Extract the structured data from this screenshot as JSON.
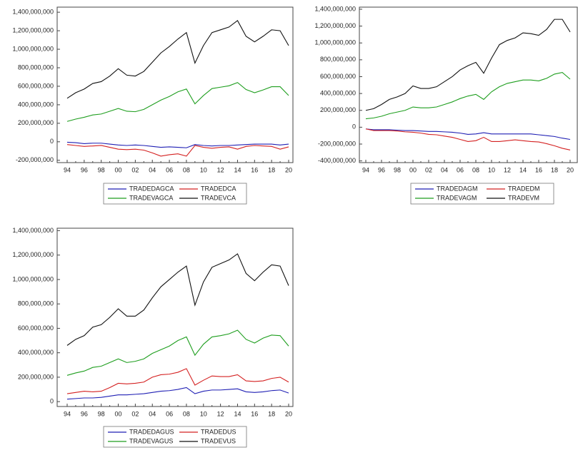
{
  "chart_data": [
    {
      "type": "line",
      "categories": [
        "94",
        null,
        "96",
        null,
        "98",
        null,
        "00",
        null,
        "02",
        null,
        "04",
        null,
        "06",
        null,
        "08",
        null,
        "10",
        null,
        "12",
        null,
        "14",
        null,
        "16",
        null,
        "18",
        null,
        "20"
      ],
      "ylim": [
        -225000000,
        1455000000
      ],
      "yticks": [
        {
          "value": -200000000,
          "label": "-200,000,000"
        },
        0,
        {
          "value": 200000000,
          "label": "200,000,000"
        },
        {
          "value": 400000000,
          "label": "400,000,000"
        },
        {
          "value": 600000000,
          "label": "600,000,000"
        },
        {
          "value": 800000000,
          "label": "800,000,000"
        },
        {
          "value": 1000000000,
          "label": "1,000,000,000"
        },
        {
          "value": 1200000000,
          "label": "1,200,000,000"
        },
        {
          "value": 1400000000,
          "label": "1,400,000,000"
        }
      ],
      "series": [
        {
          "name": "TRADEDAGCA",
          "color": "#1f1fb4",
          "values": [
            -5000000,
            -10000000,
            -20000000,
            -15000000,
            -15000000,
            -25000000,
            -35000000,
            -40000000,
            -35000000,
            -40000000,
            -50000000,
            -60000000,
            -55000000,
            -60000000,
            -65000000,
            -30000000,
            -40000000,
            -45000000,
            -40000000,
            -40000000,
            -35000000,
            -30000000,
            -25000000,
            -25000000,
            -25000000,
            -35000000,
            -25000000
          ]
        },
        {
          "name": "TRADEDCA",
          "color": "#d42020",
          "values": [
            -30000000,
            -40000000,
            -50000000,
            -45000000,
            -40000000,
            -60000000,
            -80000000,
            -85000000,
            -80000000,
            -90000000,
            -120000000,
            -155000000,
            -140000000,
            -130000000,
            -155000000,
            -40000000,
            -60000000,
            -70000000,
            -60000000,
            -55000000,
            -80000000,
            -50000000,
            -40000000,
            -45000000,
            -50000000,
            -80000000,
            -55000000
          ]
        },
        {
          "name": "TRADEVAGCA",
          "color": "#1e9e1e",
          "values": [
            220000000,
            245000000,
            265000000,
            290000000,
            300000000,
            330000000,
            360000000,
            330000000,
            325000000,
            350000000,
            400000000,
            450000000,
            490000000,
            540000000,
            570000000,
            410000000,
            500000000,
            575000000,
            590000000,
            605000000,
            640000000,
            565000000,
            530000000,
            560000000,
            595000000,
            595000000,
            500000000
          ]
        },
        {
          "name": "TRADEVCA",
          "color": "#111111",
          "values": [
            470000000,
            530000000,
            570000000,
            630000000,
            650000000,
            710000000,
            790000000,
            720000000,
            710000000,
            760000000,
            860000000,
            960000000,
            1030000000,
            1110000000,
            1180000000,
            850000000,
            1040000000,
            1180000000,
            1210000000,
            1240000000,
            1310000000,
            1140000000,
            1080000000,
            1140000000,
            1210000000,
            1200000000,
            1040000000
          ]
        }
      ]
    },
    {
      "type": "line",
      "categories": [
        "94",
        null,
        "96",
        null,
        "98",
        null,
        "00",
        null,
        "02",
        null,
        "04",
        null,
        "06",
        null,
        "08",
        null,
        "10",
        null,
        "12",
        null,
        "14",
        null,
        "16",
        null,
        "18",
        null,
        "20"
      ],
      "ylim": [
        -420000000,
        1425000000
      ],
      "yticks": [
        {
          "value": -400000000,
          "label": "-400,000,000"
        },
        {
          "value": -200000000,
          "label": "-200,000,000"
        },
        0,
        {
          "value": 200000000,
          "label": "200,000,000"
        },
        {
          "value": 400000000,
          "label": "400,000,000"
        },
        {
          "value": 600000000,
          "label": "600,000,000"
        },
        {
          "value": 800000000,
          "label": "800,000,000"
        },
        {
          "value": 1000000000,
          "label": "1,000,000,000"
        },
        {
          "value": 1200000000,
          "label": "1,200,000,000"
        },
        {
          "value": 1400000000,
          "label": "1,400,000,000"
        }
      ],
      "series": [
        {
          "name": "TRADEDAGM",
          "color": "#1f1fb4",
          "values": [
            -20000000,
            -30000000,
            -30000000,
            -30000000,
            -35000000,
            -40000000,
            -40000000,
            -45000000,
            -50000000,
            -50000000,
            -55000000,
            -60000000,
            -70000000,
            -85000000,
            -80000000,
            -65000000,
            -80000000,
            -80000000,
            -80000000,
            -80000000,
            -80000000,
            -80000000,
            -90000000,
            -100000000,
            -110000000,
            -130000000,
            -145000000
          ]
        },
        {
          "name": "TRADEDM",
          "color": "#d42020",
          "values": [
            -20000000,
            -40000000,
            -40000000,
            -40000000,
            -45000000,
            -55000000,
            -60000000,
            -70000000,
            -85000000,
            -90000000,
            -105000000,
            -120000000,
            -145000000,
            -170000000,
            -160000000,
            -120000000,
            -170000000,
            -170000000,
            -160000000,
            -150000000,
            -160000000,
            -170000000,
            -175000000,
            -195000000,
            -220000000,
            -250000000,
            -270000000
          ]
        },
        {
          "name": "TRADEVAGM",
          "color": "#1e9e1e",
          "values": [
            100000000,
            110000000,
            130000000,
            160000000,
            180000000,
            200000000,
            240000000,
            230000000,
            230000000,
            240000000,
            270000000,
            300000000,
            340000000,
            370000000,
            390000000,
            330000000,
            420000000,
            480000000,
            520000000,
            540000000,
            560000000,
            560000000,
            550000000,
            580000000,
            630000000,
            650000000,
            570000000
          ]
        },
        {
          "name": "TRADEVM",
          "color": "#111111",
          "values": [
            200000000,
            220000000,
            270000000,
            330000000,
            360000000,
            400000000,
            490000000,
            460000000,
            460000000,
            480000000,
            540000000,
            600000000,
            680000000,
            730000000,
            770000000,
            640000000,
            820000000,
            980000000,
            1030000000,
            1060000000,
            1120000000,
            1110000000,
            1090000000,
            1160000000,
            1280000000,
            1280000000,
            1130000000
          ]
        }
      ]
    },
    {
      "type": "line",
      "categories": [
        "94",
        null,
        "96",
        null,
        "98",
        null,
        "00",
        null,
        "02",
        null,
        "04",
        null,
        "06",
        null,
        "08",
        null,
        "10",
        null,
        "12",
        null,
        "14",
        null,
        "16",
        null,
        "18",
        null,
        "20"
      ],
      "ylim": [
        -40000000,
        1420000000
      ],
      "yticks": [
        0,
        {
          "value": 200000000,
          "label": "200,000,000"
        },
        {
          "value": 400000000,
          "label": "400,000,000"
        },
        {
          "value": 600000000,
          "label": "600,000,000"
        },
        {
          "value": 800000000,
          "label": "800,000,000"
        },
        {
          "value": 1000000000,
          "label": "1,000,000,000"
        },
        {
          "value": 1200000000,
          "label": "1,200,000,000"
        },
        {
          "value": 1400000000,
          "label": "1,400,000,000"
        }
      ],
      "series": [
        {
          "name": "TRADEDAGUS",
          "color": "#1f1fb4",
          "values": [
            20000000,
            25000000,
            30000000,
            30000000,
            35000000,
            45000000,
            55000000,
            55000000,
            60000000,
            65000000,
            75000000,
            85000000,
            90000000,
            100000000,
            115000000,
            65000000,
            85000000,
            95000000,
            95000000,
            100000000,
            105000000,
            80000000,
            75000000,
            80000000,
            90000000,
            95000000,
            70000000
          ]
        },
        {
          "name": "TRADEDUS",
          "color": "#d42020",
          "values": [
            65000000,
            75000000,
            85000000,
            80000000,
            85000000,
            115000000,
            150000000,
            145000000,
            150000000,
            160000000,
            200000000,
            220000000,
            225000000,
            240000000,
            270000000,
            135000000,
            175000000,
            210000000,
            205000000,
            205000000,
            220000000,
            170000000,
            165000000,
            170000000,
            190000000,
            200000000,
            160000000
          ]
        },
        {
          "name": "TRADEVAGUS",
          "color": "#1e9e1e",
          "values": [
            215000000,
            235000000,
            250000000,
            280000000,
            290000000,
            320000000,
            350000000,
            320000000,
            330000000,
            350000000,
            395000000,
            425000000,
            455000000,
            500000000,
            530000000,
            380000000,
            470000000,
            530000000,
            540000000,
            555000000,
            585000000,
            510000000,
            480000000,
            520000000,
            545000000,
            540000000,
            455000000
          ]
        },
        {
          "name": "TRADEVUS",
          "color": "#111111",
          "values": [
            460000000,
            510000000,
            540000000,
            610000000,
            630000000,
            690000000,
            760000000,
            700000000,
            700000000,
            750000000,
            850000000,
            940000000,
            1000000000,
            1060000000,
            1110000000,
            790000000,
            980000000,
            1100000000,
            1130000000,
            1160000000,
            1210000000,
            1050000000,
            990000000,
            1060000000,
            1120000000,
            1110000000,
            950000000
          ]
        }
      ]
    }
  ]
}
